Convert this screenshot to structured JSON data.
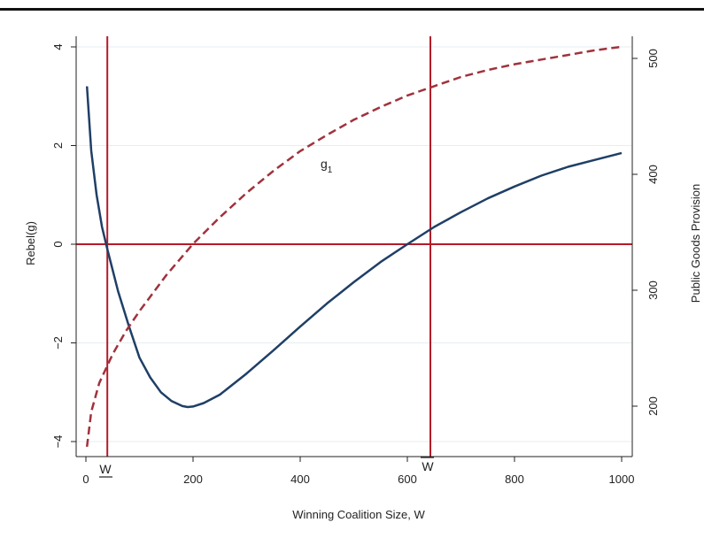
{
  "chart_data": {
    "type": "line",
    "title": "",
    "xlabel": "Winning Coalition Size, W",
    "ylabel_left": "Rebel(g)",
    "ylabel_right": "Public Goods Provision",
    "xlim": [
      0,
      1000
    ],
    "ylim_left": [
      -4,
      4
    ],
    "ylim_right": [
      160,
      520
    ],
    "x_ticks": [
      0,
      200,
      400,
      600,
      800,
      1000
    ],
    "y_ticks_left": [
      -4,
      -2,
      0,
      2,
      4
    ],
    "y_ticks_right": [
      200,
      300,
      400,
      500
    ],
    "grid": "horizontal",
    "series": [
      {
        "axis": "left",
        "style": "solid",
        "color": "#1f3f66",
        "x": [
          2,
          10,
          20,
          30,
          40,
          60,
          80,
          100,
          120,
          140,
          160,
          180,
          190,
          200,
          220,
          250,
          300,
          350,
          400,
          450,
          500,
          550,
          600,
          650,
          700,
          750,
          800,
          850,
          900,
          950,
          1000
        ],
        "y": [
          3.2,
          1.9,
          1.0,
          0.35,
          -0.1,
          -0.95,
          -1.65,
          -2.3,
          -2.7,
          -3.0,
          -3.18,
          -3.28,
          -3.3,
          -3.29,
          -3.22,
          -3.05,
          -2.62,
          -2.15,
          -1.67,
          -1.2,
          -0.77,
          -0.36,
          0.0,
          0.35,
          0.65,
          0.93,
          1.17,
          1.39,
          1.57,
          1.71,
          1.85
        ]
      },
      {
        "axis": "right",
        "style": "dashed",
        "color": "#a0323c",
        "x": [
          2,
          10,
          25,
          50,
          75,
          100,
          150,
          200,
          250,
          300,
          350,
          400,
          450,
          500,
          550,
          600,
          650,
          700,
          750,
          800,
          850,
          900,
          950,
          1000
        ],
        "y": [
          165,
          195,
          220,
          245,
          265,
          282,
          313,
          340,
          363,
          384,
          403,
          420,
          434,
          447,
          458,
          468,
          476,
          484,
          490,
          495,
          499,
          503,
          507,
          510
        ]
      }
    ],
    "reference_lines": {
      "horizontal_y": 0,
      "vertical_x": [
        40,
        643
      ],
      "color": "#b31b28"
    },
    "annotations": {
      "curve_label": "g",
      "curve_label_sub": "1",
      "w_low": "W",
      "w_high": "W"
    }
  }
}
